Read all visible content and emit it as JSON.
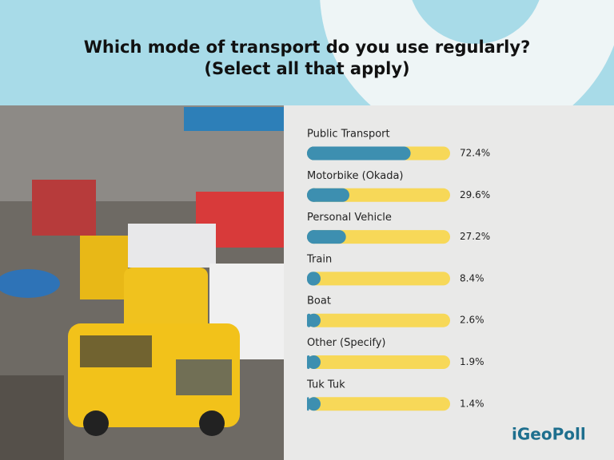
{
  "chart_data": {
    "type": "bar",
    "orientation": "horizontal",
    "title": "Which mode of transport do you use regularly?",
    "subtitle": "(Select all that apply)",
    "categories": [
      "Public Transport",
      "Motorbike (Okada)",
      "Personal Vehicle",
      "Train",
      "Boat",
      "Other (Specify)",
      "Tuk Tuk"
    ],
    "values": [
      72.4,
      29.6,
      27.2,
      8.4,
      2.6,
      1.9,
      1.4
    ],
    "value_labels": [
      "72.4%",
      "29.6%",
      "27.2%",
      "8.4%",
      "2.6%",
      "1.9%",
      "1.4%"
    ],
    "xlim": [
      0,
      100
    ],
    "color": "#3d8fb0",
    "track_color": "#f7d858",
    "brand": "iGeoPoll"
  }
}
